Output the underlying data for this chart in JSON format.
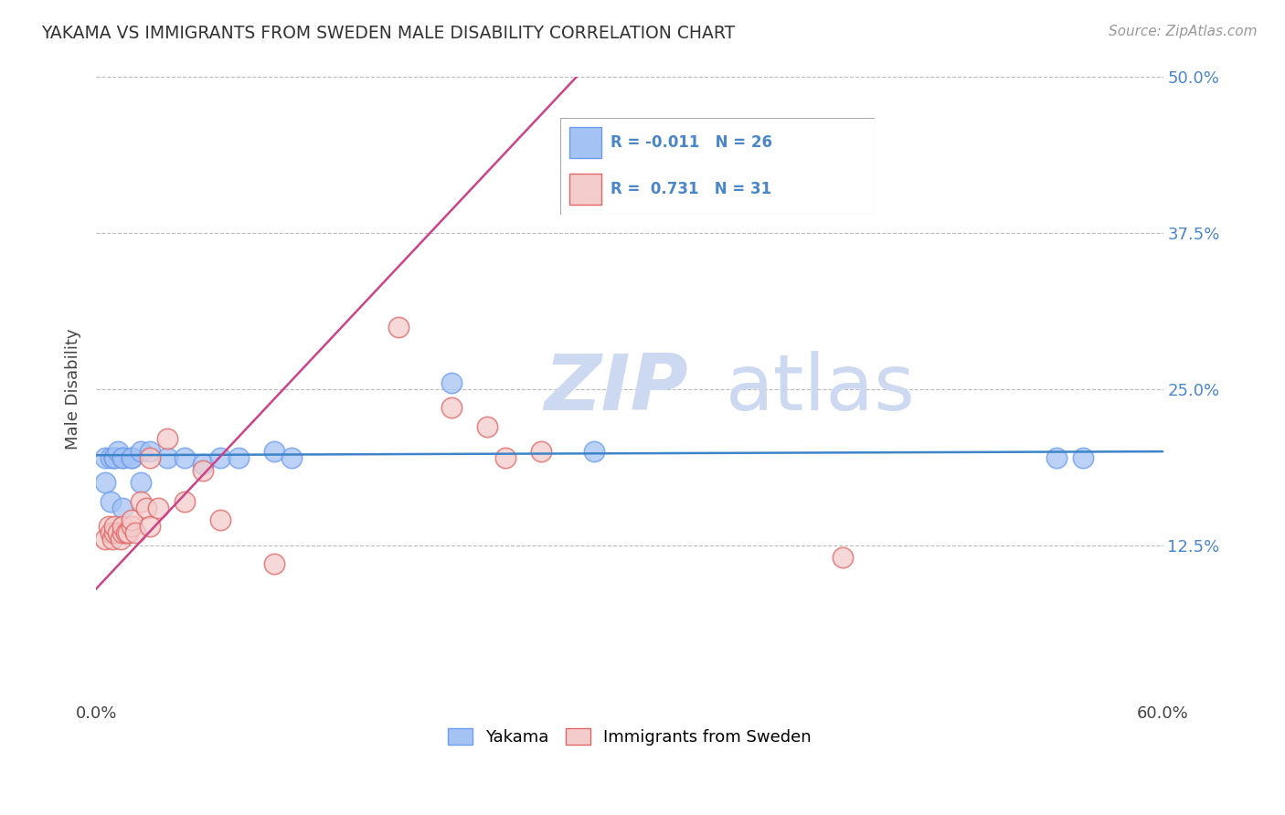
{
  "title": "YAKAMA VS IMMIGRANTS FROM SWEDEN MALE DISABILITY CORRELATION CHART",
  "source": "Source: ZipAtlas.com",
  "ylabel": "Male Disability",
  "xlim": [
    0.0,
    0.6
  ],
  "ylim": [
    0.0,
    0.5
  ],
  "x_ticks": [
    0.0,
    0.1,
    0.2,
    0.3,
    0.4,
    0.5,
    0.6
  ],
  "x_tick_labels": [
    "0.0%",
    "",
    "",
    "",
    "",
    "",
    "60.0%"
  ],
  "y_ticks": [
    0.0,
    0.125,
    0.25,
    0.375,
    0.5
  ],
  "y_tick_labels_right": [
    "",
    "12.5%",
    "25.0%",
    "37.5%",
    "50.0%"
  ],
  "legend_labels": [
    "Yakama",
    "Immigrants from Sweden"
  ],
  "legend_R": [
    -0.011,
    0.731
  ],
  "legend_N": [
    26,
    31
  ],
  "blue_fill": "#a4c2f4",
  "blue_edge": "#6d9eeb",
  "pink_fill": "#f4cccc",
  "pink_edge": "#e06666",
  "blue_line_color": "#3d85c8",
  "pink_line_color": "#cc4488",
  "watermark_color": "#ccd9f0",
  "background_color": "#ffffff",
  "grid_color": "#bbbbbb",
  "yakama_x": [
    0.005,
    0.008,
    0.01,
    0.01,
    0.012,
    0.015,
    0.015,
    0.02,
    0.02,
    0.025,
    0.03,
    0.04,
    0.05,
    0.06,
    0.07,
    0.08,
    0.1,
    0.11,
    0.2,
    0.28,
    0.54,
    0.555,
    0.005,
    0.008,
    0.015,
    0.025
  ],
  "yakama_y": [
    0.195,
    0.195,
    0.195,
    0.195,
    0.2,
    0.195,
    0.195,
    0.195,
    0.195,
    0.2,
    0.2,
    0.195,
    0.195,
    0.19,
    0.195,
    0.195,
    0.2,
    0.195,
    0.255,
    0.2,
    0.195,
    0.195,
    0.175,
    0.16,
    0.155,
    0.175
  ],
  "sweden_x": [
    0.005,
    0.007,
    0.008,
    0.009,
    0.01,
    0.01,
    0.012,
    0.014,
    0.015,
    0.015,
    0.017,
    0.018,
    0.02,
    0.02,
    0.022,
    0.025,
    0.028,
    0.03,
    0.03,
    0.035,
    0.04,
    0.05,
    0.06,
    0.07,
    0.1,
    0.17,
    0.2,
    0.22,
    0.23,
    0.25,
    0.42
  ],
  "sweden_y": [
    0.13,
    0.14,
    0.135,
    0.13,
    0.135,
    0.14,
    0.135,
    0.13,
    0.135,
    0.14,
    0.135,
    0.135,
    0.14,
    0.145,
    0.135,
    0.16,
    0.155,
    0.195,
    0.14,
    0.155,
    0.21,
    0.16,
    0.185,
    0.145,
    0.11,
    0.3,
    0.235,
    0.22,
    0.195,
    0.2,
    0.115
  ],
  "blue_line_x": [
    0.0,
    0.6
  ],
  "blue_line_y": [
    0.197,
    0.2
  ],
  "pink_line_x": [
    0.0,
    0.27
  ],
  "pink_line_y": [
    0.09,
    0.5
  ]
}
